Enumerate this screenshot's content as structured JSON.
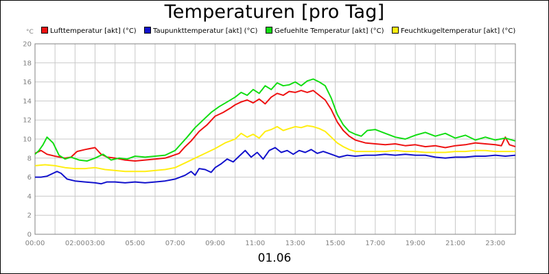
{
  "chart_data": {
    "type": "line",
    "title": "Temperaturen [pro Tag]",
    "unit": "°C",
    "xlabel": "01.06",
    "ylim": [
      0,
      20
    ],
    "xlim": [
      0,
      24
    ],
    "yticks": [
      "0",
      "2",
      "4",
      "6",
      "8",
      "10",
      "12",
      "14",
      "16",
      "18",
      "20"
    ],
    "xticks": [
      {
        "h": 0,
        "label": "00:00"
      },
      {
        "h": 2,
        "label": "02:00"
      },
      {
        "h": 3,
        "label": "03:00"
      },
      {
        "h": 5,
        "label": "05:00"
      },
      {
        "h": 7,
        "label": "07:00"
      },
      {
        "h": 9,
        "label": "09:00"
      },
      {
        "h": 11,
        "label": "11:00"
      },
      {
        "h": 13,
        "label": "13:00"
      },
      {
        "h": 15,
        "label": "15:00"
      },
      {
        "h": 17,
        "label": "17:00"
      },
      {
        "h": 19,
        "label": "19:00"
      },
      {
        "h": 21,
        "label": "21:00"
      },
      {
        "h": 23,
        "label": "23:00"
      }
    ],
    "grid": true,
    "legend_position": "top",
    "series": [
      {
        "name": "Lufttemperatur [akt] (°C)",
        "color": "#ee1111",
        "points": [
          [
            0,
            8.5
          ],
          [
            0.3,
            8.8
          ],
          [
            0.6,
            8.4
          ],
          [
            1,
            8.2
          ],
          [
            1.5,
            8.0
          ],
          [
            1.8,
            8.1
          ],
          [
            2.1,
            8.7
          ],
          [
            2.5,
            8.9
          ],
          [
            3,
            9.1
          ],
          [
            3.3,
            8.4
          ],
          [
            3.6,
            8.1
          ],
          [
            4,
            8.0
          ],
          [
            4.5,
            7.8
          ],
          [
            5,
            7.7
          ],
          [
            5.5,
            7.8
          ],
          [
            6,
            7.9
          ],
          [
            6.5,
            8.0
          ],
          [
            6.8,
            8.2
          ],
          [
            7.2,
            8.5
          ],
          [
            7.5,
            9.2
          ],
          [
            7.8,
            9.8
          ],
          [
            8.2,
            10.8
          ],
          [
            8.6,
            11.5
          ],
          [
            9,
            12.4
          ],
          [
            9.4,
            12.8
          ],
          [
            9.8,
            13.3
          ],
          [
            10,
            13.6
          ],
          [
            10.3,
            13.9
          ],
          [
            10.6,
            14.1
          ],
          [
            10.9,
            13.8
          ],
          [
            11.2,
            14.2
          ],
          [
            11.5,
            13.7
          ],
          [
            11.8,
            14.4
          ],
          [
            12.1,
            14.8
          ],
          [
            12.4,
            14.6
          ],
          [
            12.7,
            15.0
          ],
          [
            13,
            14.9
          ],
          [
            13.3,
            15.1
          ],
          [
            13.6,
            14.9
          ],
          [
            13.9,
            15.1
          ],
          [
            14.2,
            14.6
          ],
          [
            14.5,
            14.1
          ],
          [
            14.8,
            13.1
          ],
          [
            15.1,
            11.8
          ],
          [
            15.4,
            10.9
          ],
          [
            15.7,
            10.3
          ],
          [
            16,
            9.9
          ],
          [
            16.5,
            9.6
          ],
          [
            17,
            9.5
          ],
          [
            17.5,
            9.4
          ],
          [
            18,
            9.5
          ],
          [
            18.5,
            9.3
          ],
          [
            19,
            9.4
          ],
          [
            19.5,
            9.2
          ],
          [
            20,
            9.3
          ],
          [
            20.5,
            9.1
          ],
          [
            21,
            9.3
          ],
          [
            21.5,
            9.4
          ],
          [
            22,
            9.6
          ],
          [
            22.5,
            9.5
          ],
          [
            23,
            9.4
          ],
          [
            23.3,
            9.3
          ],
          [
            23.5,
            10.2
          ],
          [
            23.7,
            9.4
          ],
          [
            24,
            9.2
          ]
        ]
      },
      {
        "name": "Taupunkttemperatur [akt] (°C)",
        "color": "#1111cc",
        "points": [
          [
            0,
            6.0
          ],
          [
            0.3,
            6.0
          ],
          [
            0.6,
            6.1
          ],
          [
            0.9,
            6.4
          ],
          [
            1.1,
            6.6
          ],
          [
            1.3,
            6.4
          ],
          [
            1.6,
            5.8
          ],
          [
            2,
            5.6
          ],
          [
            2.5,
            5.5
          ],
          [
            3,
            5.4
          ],
          [
            3.3,
            5.3
          ],
          [
            3.6,
            5.5
          ],
          [
            4,
            5.5
          ],
          [
            4.5,
            5.4
          ],
          [
            5,
            5.5
          ],
          [
            5.5,
            5.4
          ],
          [
            6,
            5.5
          ],
          [
            6.5,
            5.6
          ],
          [
            7,
            5.8
          ],
          [
            7.5,
            6.2
          ],
          [
            7.8,
            6.6
          ],
          [
            8,
            6.2
          ],
          [
            8.2,
            6.9
          ],
          [
            8.5,
            6.8
          ],
          [
            8.8,
            6.5
          ],
          [
            9,
            7.0
          ],
          [
            9.3,
            7.4
          ],
          [
            9.6,
            7.9
          ],
          [
            9.9,
            7.6
          ],
          [
            10.2,
            8.2
          ],
          [
            10.5,
            8.8
          ],
          [
            10.8,
            8.1
          ],
          [
            11.1,
            8.6
          ],
          [
            11.4,
            7.9
          ],
          [
            11.7,
            8.8
          ],
          [
            12,
            9.1
          ],
          [
            12.3,
            8.6
          ],
          [
            12.6,
            8.8
          ],
          [
            12.9,
            8.4
          ],
          [
            13.2,
            8.8
          ],
          [
            13.5,
            8.6
          ],
          [
            13.8,
            8.9
          ],
          [
            14.1,
            8.5
          ],
          [
            14.4,
            8.7
          ],
          [
            14.8,
            8.4
          ],
          [
            15.2,
            8.1
          ],
          [
            15.6,
            8.3
          ],
          [
            16,
            8.2
          ],
          [
            16.5,
            8.3
          ],
          [
            17,
            8.3
          ],
          [
            17.5,
            8.4
          ],
          [
            18,
            8.3
          ],
          [
            18.5,
            8.4
          ],
          [
            19,
            8.3
          ],
          [
            19.5,
            8.3
          ],
          [
            20,
            8.1
          ],
          [
            20.5,
            8.0
          ],
          [
            21,
            8.1
          ],
          [
            21.5,
            8.1
          ],
          [
            22,
            8.2
          ],
          [
            22.5,
            8.2
          ],
          [
            23,
            8.3
          ],
          [
            23.5,
            8.2
          ],
          [
            24,
            8.3
          ]
        ]
      },
      {
        "name": "Gefuehlte Temperatur [akt] (°C)",
        "color": "#11dd11",
        "points": [
          [
            0,
            8.4
          ],
          [
            0.2,
            8.8
          ],
          [
            0.4,
            9.4
          ],
          [
            0.6,
            10.2
          ],
          [
            0.9,
            9.6
          ],
          [
            1.2,
            8.3
          ],
          [
            1.5,
            7.9
          ],
          [
            1.8,
            8.1
          ],
          [
            2.2,
            7.8
          ],
          [
            2.6,
            7.7
          ],
          [
            3,
            8.0
          ],
          [
            3.4,
            8.4
          ],
          [
            3.8,
            7.8
          ],
          [
            4.2,
            8.0
          ],
          [
            4.6,
            7.9
          ],
          [
            5,
            8.2
          ],
          [
            5.5,
            8.1
          ],
          [
            6,
            8.2
          ],
          [
            6.5,
            8.3
          ],
          [
            7,
            8.8
          ],
          [
            7.3,
            9.5
          ],
          [
            7.6,
            10.2
          ],
          [
            8,
            11.2
          ],
          [
            8.4,
            12.0
          ],
          [
            8.8,
            12.8
          ],
          [
            9.2,
            13.4
          ],
          [
            9.6,
            13.9
          ],
          [
            10,
            14.4
          ],
          [
            10.3,
            14.9
          ],
          [
            10.6,
            14.6
          ],
          [
            10.9,
            15.2
          ],
          [
            11.2,
            14.8
          ],
          [
            11.5,
            15.6
          ],
          [
            11.8,
            15.2
          ],
          [
            12.1,
            15.9
          ],
          [
            12.4,
            15.6
          ],
          [
            12.7,
            15.7
          ],
          [
            13,
            16.0
          ],
          [
            13.3,
            15.6
          ],
          [
            13.6,
            16.1
          ],
          [
            13.9,
            16.3
          ],
          [
            14.2,
            16.0
          ],
          [
            14.5,
            15.6
          ],
          [
            14.8,
            14.3
          ],
          [
            15.1,
            12.6
          ],
          [
            15.4,
            11.5
          ],
          [
            15.7,
            10.8
          ],
          [
            16,
            10.5
          ],
          [
            16.3,
            10.3
          ],
          [
            16.6,
            10.9
          ],
          [
            17,
            11.0
          ],
          [
            17.5,
            10.6
          ],
          [
            18,
            10.2
          ],
          [
            18.5,
            10.0
          ],
          [
            19,
            10.4
          ],
          [
            19.5,
            10.7
          ],
          [
            20,
            10.3
          ],
          [
            20.5,
            10.6
          ],
          [
            21,
            10.1
          ],
          [
            21.5,
            10.4
          ],
          [
            22,
            9.9
          ],
          [
            22.5,
            10.2
          ],
          [
            23,
            9.9
          ],
          [
            23.5,
            10.1
          ],
          [
            24,
            9.8
          ]
        ]
      },
      {
        "name": "Feuchtkugeltemperatur [akt] (°C)",
        "color": "#ffee11",
        "points": [
          [
            0,
            7.2
          ],
          [
            0.5,
            7.3
          ],
          [
            1,
            7.2
          ],
          [
            1.5,
            7.0
          ],
          [
            2,
            6.9
          ],
          [
            2.5,
            6.9
          ],
          [
            3,
            7.0
          ],
          [
            3.5,
            6.8
          ],
          [
            4,
            6.7
          ],
          [
            4.5,
            6.6
          ],
          [
            5,
            6.6
          ],
          [
            5.5,
            6.6
          ],
          [
            6,
            6.7
          ],
          [
            6.5,
            6.8
          ],
          [
            7,
            7.0
          ],
          [
            7.5,
            7.5
          ],
          [
            8,
            8.0
          ],
          [
            8.5,
            8.5
          ],
          [
            9,
            9.0
          ],
          [
            9.5,
            9.6
          ],
          [
            10,
            10.0
          ],
          [
            10.3,
            10.6
          ],
          [
            10.6,
            10.2
          ],
          [
            10.9,
            10.5
          ],
          [
            11.2,
            10.1
          ],
          [
            11.5,
            10.8
          ],
          [
            11.8,
            11.0
          ],
          [
            12.1,
            11.3
          ],
          [
            12.4,
            10.9
          ],
          [
            12.7,
            11.1
          ],
          [
            13,
            11.3
          ],
          [
            13.3,
            11.2
          ],
          [
            13.6,
            11.4
          ],
          [
            13.9,
            11.3
          ],
          [
            14.2,
            11.1
          ],
          [
            14.5,
            10.8
          ],
          [
            14.8,
            10.2
          ],
          [
            15.1,
            9.6
          ],
          [
            15.4,
            9.2
          ],
          [
            15.7,
            8.9
          ],
          [
            16,
            8.7
          ],
          [
            16.5,
            8.7
          ],
          [
            17,
            8.7
          ],
          [
            17.5,
            8.7
          ],
          [
            18,
            8.8
          ],
          [
            18.5,
            8.7
          ],
          [
            19,
            8.7
          ],
          [
            19.5,
            8.6
          ],
          [
            20,
            8.6
          ],
          [
            20.5,
            8.6
          ],
          [
            21,
            8.7
          ],
          [
            21.5,
            8.7
          ],
          [
            22,
            8.8
          ],
          [
            22.5,
            8.8
          ],
          [
            23,
            8.7
          ],
          [
            23.5,
            8.7
          ],
          [
            24,
            8.7
          ]
        ]
      }
    ]
  }
}
